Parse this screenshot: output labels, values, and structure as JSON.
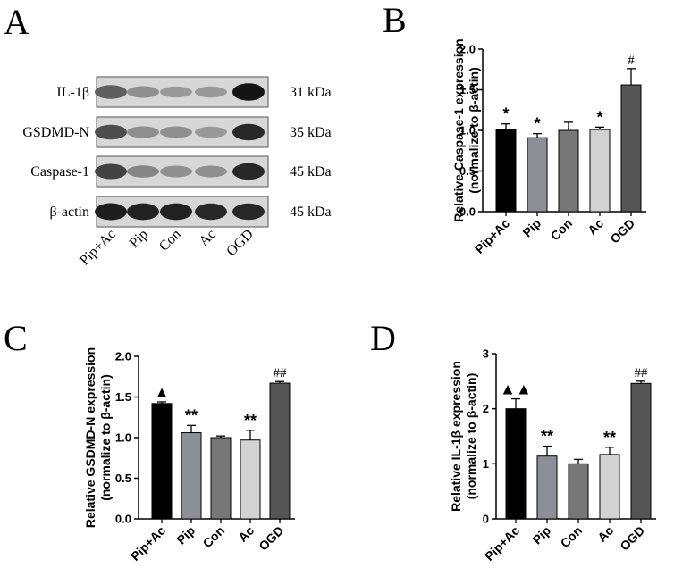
{
  "panels": {
    "A": "A",
    "B": "B",
    "C": "C",
    "D": "D"
  },
  "blot": {
    "rows": [
      {
        "protein": "IL-1β",
        "size": "31 kDa",
        "intensities": [
          0.55,
          0.3,
          0.25,
          0.25,
          0.95
        ]
      },
      {
        "protein": "GSDMD-N",
        "size": "35 kDa",
        "intensities": [
          0.65,
          0.3,
          0.3,
          0.25,
          0.85
        ]
      },
      {
        "protein": "Caspase-1",
        "size": "45 kDa",
        "intensities": [
          0.7,
          0.35,
          0.3,
          0.3,
          0.85
        ]
      },
      {
        "protein": "β-actin",
        "size": "45 kDa",
        "intensities": [
          0.9,
          0.88,
          0.88,
          0.85,
          0.85
        ]
      }
    ],
    "lanes": [
      "Pip+Ac",
      "Pip",
      "Con",
      "Ac",
      "OGD"
    ]
  },
  "chart_data": [
    {
      "panel": "B",
      "type": "bar",
      "categories": [
        "Pip+Ac",
        "Pip",
        "Con",
        "Ac",
        "OGD"
      ],
      "values": [
        1.01,
        0.91,
        1.0,
        1.01,
        1.56
      ],
      "errors": [
        0.07,
        0.05,
        0.1,
        0.03,
        0.2
      ],
      "significance": [
        "*",
        "*",
        "",
        "*",
        "#"
      ],
      "colors": [
        "#000000",
        "#8e8e98",
        "#777777",
        "#d2d2d2",
        "#555555"
      ],
      "ylabel": [
        "Relative Caspase-1 expression",
        "(normalize to β-actin)"
      ],
      "ylim": [
        0,
        2.0
      ],
      "yticks": [
        "0.0",
        "0.5",
        "1.0",
        "1.5",
        "2.0"
      ]
    },
    {
      "panel": "C",
      "type": "bar",
      "categories": [
        "Pip+Ac",
        "Pip",
        "Con",
        "Ac",
        "OGD"
      ],
      "values": [
        1.42,
        1.06,
        1.0,
        0.97,
        1.67
      ],
      "errors": [
        0.02,
        0.09,
        0.02,
        0.12,
        0.02
      ],
      "significance": [
        "▲",
        "**",
        "",
        "**",
        "##"
      ],
      "colors": [
        "#000000",
        "#8e8e98",
        "#777777",
        "#d2d2d2",
        "#555555"
      ],
      "ylabel": [
        "Relative GSDMD-N expression",
        "(normalize to β-actin)"
      ],
      "ylim": [
        0,
        2.0
      ],
      "yticks": [
        "0.0",
        "0.5",
        "1.0",
        "1.5",
        "2.0"
      ]
    },
    {
      "panel": "D",
      "type": "bar",
      "categories": [
        "Pip+Ac",
        "Pip",
        "Con",
        "Ac",
        "OGD"
      ],
      "values": [
        2.0,
        1.14,
        1.0,
        1.17,
        2.46
      ],
      "errors": [
        0.18,
        0.18,
        0.08,
        0.13,
        0.04
      ],
      "significance": [
        "▲▲",
        "**",
        "",
        "**",
        "##"
      ],
      "colors": [
        "#000000",
        "#8e8e98",
        "#777777",
        "#d2d2d2",
        "#555555"
      ],
      "ylabel": [
        "Relative IL-1β expression",
        "(normalize to β-actin)"
      ],
      "ylim": [
        0,
        3
      ],
      "yticks": [
        "0",
        "1",
        "2",
        "3"
      ]
    }
  ]
}
